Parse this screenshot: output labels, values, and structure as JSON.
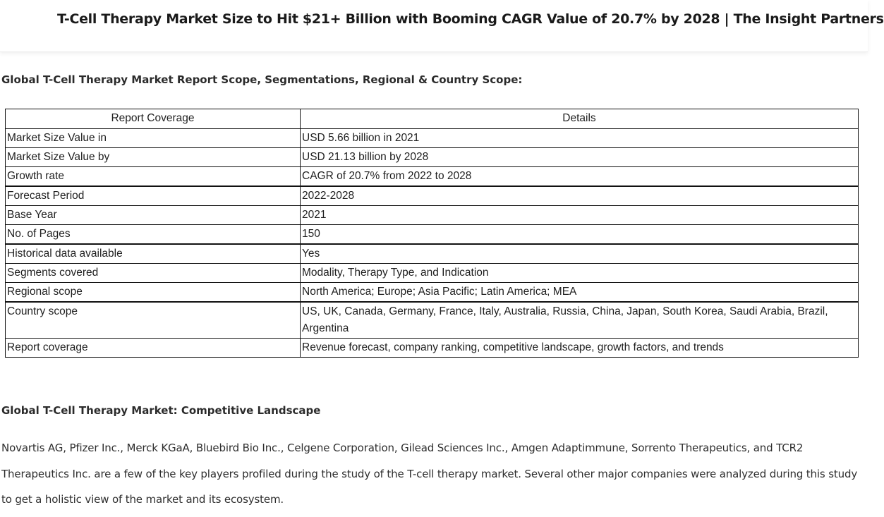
{
  "header": {
    "title": "T-Cell Therapy Market Size to Hit $21+ Billion with Booming CAGR Value of 20.7% by 2028 | The Insight Partners"
  },
  "scope_section": {
    "heading": "Global T-Cell Therapy Market Report Scope, Segmentations, Regional & Country Scope:",
    "table": {
      "columns": [
        "Report Coverage",
        "Details"
      ],
      "rows": [
        [
          "Market Size Value in",
          "USD 5.66 billion in 2021"
        ],
        [
          "Market Size Value by",
          "USD 21.13 billion by 2028"
        ],
        [
          "Growth rate",
          "CAGR of 20.7% from 2022 to 2028"
        ],
        [
          "Forecast Period",
          "2022-2028"
        ],
        [
          "Base Year",
          "2021"
        ],
        [
          "No. of Pages",
          "150"
        ],
        [
          "Historical data available",
          "Yes"
        ],
        [
          "Segments covered",
          "Modality, Therapy Type, and Indication"
        ],
        [
          "Regional scope",
          "North America; Europe; Asia Pacific; Latin America; MEA"
        ],
        [
          "Country scope",
          "US, UK, Canada, Germany, France, Italy, Australia, Russia, China, Japan, South Korea, Saudi Arabia, Brazil, Argentina"
        ],
        [
          "Report coverage",
          "Revenue forecast, company ranking, competitive landscape, growth factors, and trends"
        ]
      ]
    }
  },
  "landscape_section": {
    "heading": "Global T-Cell Therapy Market: Competitive Landscape",
    "paragraph": "Novartis AG, Pfizer Inc., Merck KGaA, Bluebird Bio Inc., Celgene Corporation, Gilead Sciences Inc., Amgen Adaptimmune, Sorrento Therapeutics, and TCR2 Therapeutics Inc. are a few of the key players profiled during the study of the T-cell therapy market. Several other major companies were analyzed during this study to get a holistic view of the market and its ecosystem."
  }
}
